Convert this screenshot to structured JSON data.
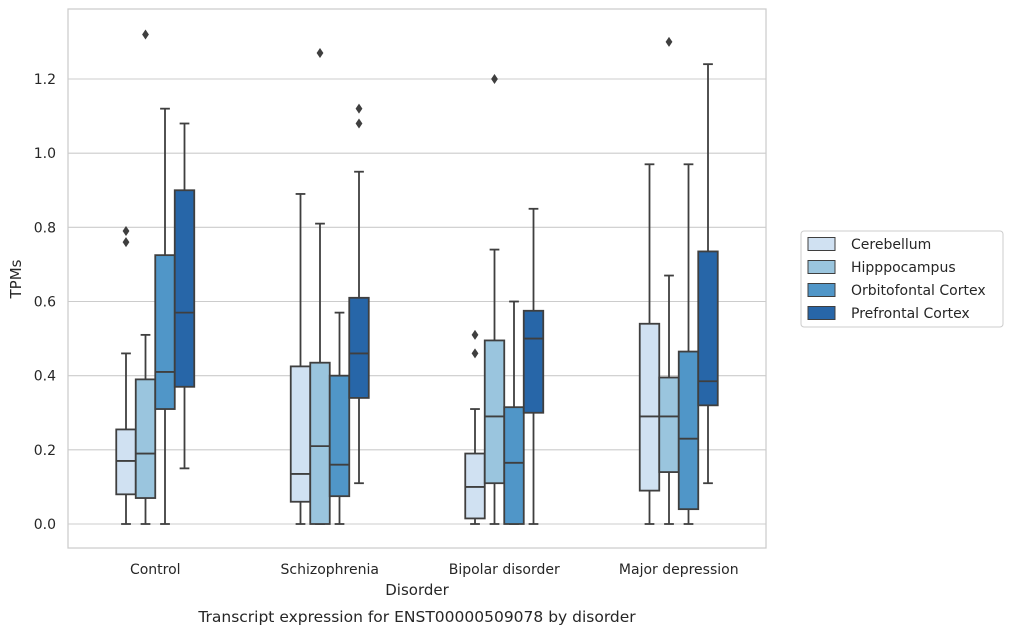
{
  "chart_data": {
    "type": "box",
    "title": "",
    "caption": "Transcript expression for ENST00000509078 by disorder",
    "xlabel": "Disorder",
    "ylabel": "TPMs",
    "ylim": [
      -0.065,
      1.39
    ],
    "yticks": [
      0.0,
      0.2,
      0.4,
      0.6,
      0.8,
      1.0,
      1.2
    ],
    "ytick_labels": [
      "0.0",
      "0.2",
      "0.4",
      "0.6",
      "0.8",
      "1.0",
      "1.2"
    ],
    "grid": "horizontal",
    "legend_position": "right",
    "categories": [
      "Control",
      "Schizophrenia",
      "Bipolar disorder",
      "Major depression"
    ],
    "series": [
      {
        "name": "Cerebellum",
        "color": "#d0e1f2",
        "boxes": [
          {
            "whislo": 0.0,
            "q1": 0.08,
            "med": 0.17,
            "q3": 0.255,
            "whishi": 0.46,
            "fliers": [
              0.76,
              0.79
            ]
          },
          {
            "whislo": 0.0,
            "q1": 0.06,
            "med": 0.135,
            "q3": 0.425,
            "whishi": 0.89,
            "fliers": []
          },
          {
            "whislo": 0.0,
            "q1": 0.015,
            "med": 0.1,
            "q3": 0.19,
            "whishi": 0.31,
            "fliers": [
              0.46,
              0.51
            ]
          },
          {
            "whislo": 0.0,
            "q1": 0.09,
            "med": 0.29,
            "q3": 0.54,
            "whishi": 0.97,
            "fliers": []
          }
        ]
      },
      {
        "name": "Hipppocampus",
        "color": "#9ac5de",
        "boxes": [
          {
            "whislo": 0.0,
            "q1": 0.07,
            "med": 0.19,
            "q3": 0.39,
            "whishi": 0.51,
            "fliers": [
              1.32
            ]
          },
          {
            "whislo": 0.0,
            "q1": 0.0,
            "med": 0.21,
            "q3": 0.435,
            "whishi": 0.81,
            "fliers": [
              1.27
            ]
          },
          {
            "whislo": 0.0,
            "q1": 0.11,
            "med": 0.29,
            "q3": 0.495,
            "whishi": 0.74,
            "fliers": [
              1.2
            ]
          },
          {
            "whislo": 0.0,
            "q1": 0.14,
            "med": 0.29,
            "q3": 0.395,
            "whishi": 0.67,
            "fliers": [
              1.3
            ]
          }
        ]
      },
      {
        "name": "Orbitofontal Cortex",
        "color": "#5096c8",
        "boxes": [
          {
            "whislo": 0.0,
            "q1": 0.31,
            "med": 0.41,
            "q3": 0.725,
            "whishi": 1.12,
            "fliers": []
          },
          {
            "whislo": 0.0,
            "q1": 0.075,
            "med": 0.16,
            "q3": 0.4,
            "whishi": 0.57,
            "fliers": []
          },
          {
            "whislo": 0.0,
            "q1": 0.0,
            "med": 0.165,
            "q3": 0.315,
            "whishi": 0.6,
            "fliers": []
          },
          {
            "whislo": 0.0,
            "q1": 0.04,
            "med": 0.23,
            "q3": 0.465,
            "whishi": 0.97,
            "fliers": []
          }
        ]
      },
      {
        "name": "Prefrontal Cortex",
        "color": "#2766a8",
        "boxes": [
          {
            "whislo": 0.15,
            "q1": 0.37,
            "med": 0.57,
            "q3": 0.9,
            "whishi": 1.08,
            "fliers": []
          },
          {
            "whislo": 0.11,
            "q1": 0.34,
            "med": 0.46,
            "q3": 0.61,
            "whishi": 0.95,
            "fliers": [
              1.08,
              1.12
            ]
          },
          {
            "whislo": 0.0,
            "q1": 0.3,
            "med": 0.5,
            "q3": 0.575,
            "whishi": 0.85,
            "fliers": []
          },
          {
            "whislo": 0.11,
            "q1": 0.32,
            "med": 0.385,
            "q3": 0.735,
            "whishi": 1.24,
            "fliers": []
          }
        ]
      }
    ]
  }
}
